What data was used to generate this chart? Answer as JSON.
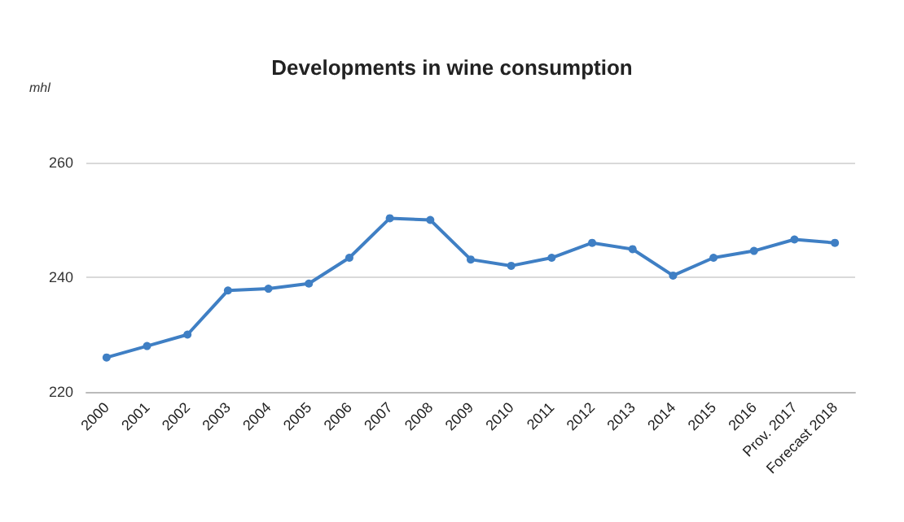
{
  "chart_data": {
    "type": "line",
    "title": "Developments in wine consumption",
    "ylabel": "mhl",
    "categories": [
      "2000",
      "2001",
      "2002",
      "2003",
      "2004",
      "2005",
      "2006",
      "2007",
      "2008",
      "2009",
      "2010",
      "2011",
      "2012",
      "2013",
      "2014",
      "2015",
      "2016",
      "Prov. 2017",
      "Forecast 2018"
    ],
    "series": [
      {
        "color": "#3f7fc4",
        "values": [
          226,
          228,
          230,
          237.7,
          238,
          238.9,
          243.4,
          250.3,
          250,
          243.1,
          242,
          243.4,
          246,
          244.9,
          240.3,
          243.4,
          244.6,
          246.6,
          246
        ]
      }
    ],
    "ylim": [
      220,
      260
    ],
    "yticks": [
      220,
      240,
      260
    ],
    "grid": "y",
    "marker": "circle",
    "line_style": "solid"
  }
}
